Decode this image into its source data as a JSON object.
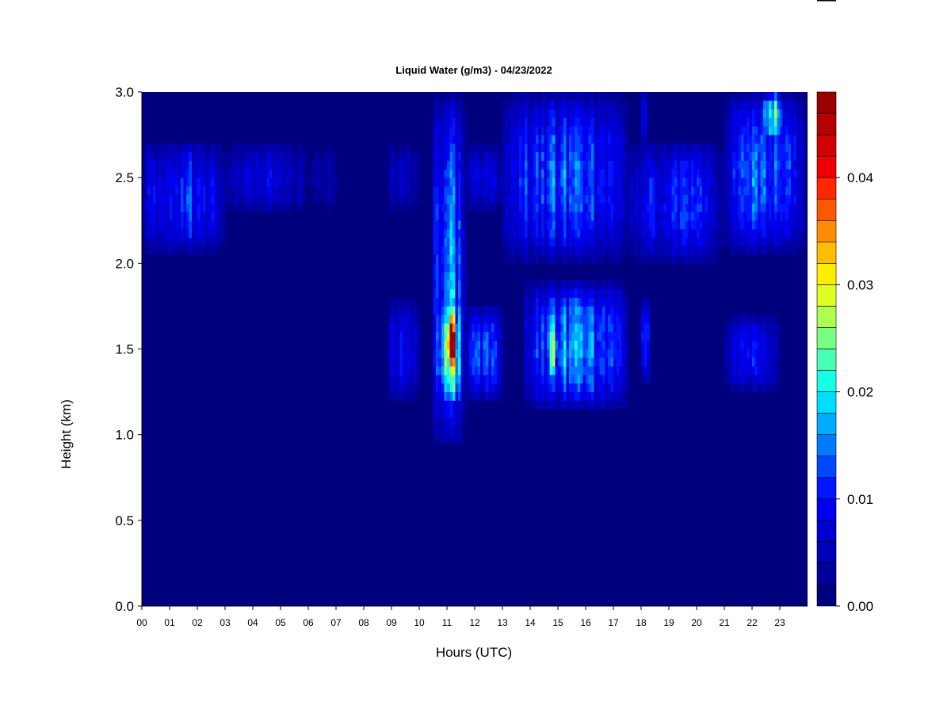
{
  "chart_data": {
    "type": "heatmap",
    "title": "Liquid Water (g/m3) - 04/23/2022",
    "xlabel": "Hours (UTC)",
    "ylabel": "Height (km)",
    "x_range": [
      0,
      24
    ],
    "ylim": [
      0,
      3
    ],
    "x_tick_labels": [
      "00",
      "01",
      "02",
      "03",
      "04",
      "05",
      "06",
      "07",
      "08",
      "09",
      "10",
      "11",
      "12",
      "13",
      "14",
      "15",
      "16",
      "17",
      "18",
      "19",
      "20",
      "21",
      "22",
      "23"
    ],
    "y_ticks": [
      0,
      0.5,
      1,
      1.5,
      2,
      2.5,
      3
    ],
    "y_tick_labels": [
      "0.0",
      "0.5",
      "1.0",
      "1.5",
      "2.0",
      "2.5",
      "3.0"
    ],
    "colorbar": {
      "range": [
        0,
        0.048
      ],
      "ticks": [
        0,
        0.01,
        0.02,
        0.03,
        0.04
      ],
      "tick_labels": [
        "0.00",
        "0.01",
        "0.02",
        "0.03",
        "0.04"
      ],
      "levels": 24,
      "colors": [
        "#00007f",
        "#00009a",
        "#0000b6",
        "#0000d2",
        "#0000ee",
        "#0016ff",
        "#0048ff",
        "#007aff",
        "#00acff",
        "#00deff",
        "#16ffe8",
        "#48ffb6",
        "#7aff84",
        "#acff52",
        "#deff20",
        "#ffee00",
        "#ffbd00",
        "#ff8b00",
        "#ff5900",
        "#ff2700",
        "#ee0000",
        "#d20000",
        "#b60000",
        "#9a0000"
      ]
    },
    "background_value": 0,
    "features": [
      {
        "hour_start": 0.0,
        "hour_end": 3.0,
        "km_low": 2.05,
        "km_high": 2.72,
        "peak": 0.013
      },
      {
        "hour_start": 3.0,
        "hour_end": 6.0,
        "km_low": 2.3,
        "km_high": 2.7,
        "peak": 0.0085
      },
      {
        "hour_start": 6.0,
        "hour_end": 7.3,
        "km_low": 2.3,
        "km_high": 2.7,
        "peak": 0.004
      },
      {
        "hour_start": 8.85,
        "hour_end": 10.0,
        "km_low": 2.3,
        "km_high": 2.7,
        "peak": 0.007
      },
      {
        "hour_start": 8.85,
        "hour_end": 10.0,
        "km_low": 1.2,
        "km_high": 1.8,
        "peak": 0.011
      },
      {
        "hour_start": 10.45,
        "hour_end": 11.7,
        "km_low": 0.92,
        "km_high": 3.0,
        "peak": 0.016
      },
      {
        "hour_start": 10.6,
        "hour_end": 11.6,
        "km_low": 1.15,
        "km_high": 1.85,
        "peak": 0.028
      },
      {
        "hour_start": 11.0,
        "hour_end": 11.35,
        "km_low": 1.35,
        "km_high": 1.72,
        "peak": 0.046
      },
      {
        "hour_start": 11.6,
        "hour_end": 13.0,
        "km_low": 1.2,
        "km_high": 1.75,
        "peak": 0.014
      },
      {
        "hour_start": 11.6,
        "hour_end": 13.0,
        "km_low": 2.3,
        "km_high": 2.7,
        "peak": 0.008
      },
      {
        "hour_start": 13.0,
        "hour_end": 17.5,
        "km_low": 2.0,
        "km_high": 3.0,
        "peak": 0.015
      },
      {
        "hour_start": 13.75,
        "hour_end": 17.5,
        "km_low": 1.15,
        "km_high": 1.9,
        "peak": 0.018
      },
      {
        "hour_start": 14.6,
        "hour_end": 15.1,
        "km_low": 1.3,
        "km_high": 1.7,
        "peak": 0.024
      },
      {
        "hour_start": 17.5,
        "hour_end": 21.0,
        "km_low": 2.0,
        "km_high": 2.72,
        "peak": 0.012
      },
      {
        "hour_start": 17.9,
        "hour_end": 18.3,
        "km_low": 0.0,
        "km_high": 0.0,
        "peak": 0.0
      },
      {
        "hour_start": 18.0,
        "hour_end": 18.3,
        "km_low": 1.3,
        "km_high": 1.8,
        "peak": 0.013
      },
      {
        "hour_start": 18.0,
        "hour_end": 18.25,
        "km_low": 2.7,
        "km_high": 3.0,
        "peak": 0.01
      },
      {
        "hour_start": 21.0,
        "hour_end": 23.9,
        "km_low": 2.05,
        "km_high": 3.0,
        "peak": 0.016
      },
      {
        "hour_start": 22.4,
        "hour_end": 23.1,
        "km_low": 2.7,
        "km_high": 3.0,
        "peak": 0.029
      },
      {
        "hour_start": 21.0,
        "hour_end": 23.0,
        "km_low": 1.25,
        "km_high": 1.7,
        "peak": 0.011
      }
    ]
  }
}
